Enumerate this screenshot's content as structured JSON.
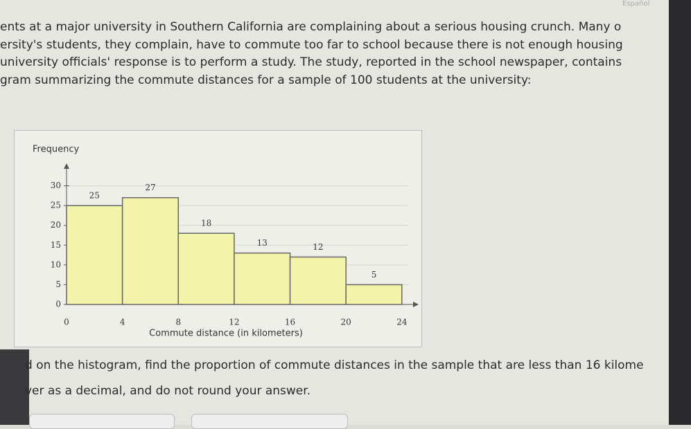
{
  "header": {
    "language": "Español"
  },
  "paragraph": [
    "ents at a major university in Southern California are complaining about a serious housing crunch. Many o",
    "ersity's students, they complain, have to commute too far to school because there is not enough housing",
    "university officials' response is to perform a study. The study, reported in the school newspaper, contains",
    "gram summarizing the commute distances for a sample of 100 students at the university:"
  ],
  "question": [
    "d on the histogram, find the proportion of commute distances in the sample that are less than 16 kilome",
    "ver as a decimal, and do not round your answer."
  ],
  "chart_data": {
    "type": "histogram",
    "y_label": "Frequency",
    "x_label": "Commute distance (in kilometers)",
    "bins": [
      0,
      4,
      8,
      12,
      16,
      20,
      24
    ],
    "values": [
      25,
      27,
      18,
      13,
      12,
      5
    ],
    "color": "#f3f3a9",
    "xlim": [
      0,
      25
    ],
    "ylim": [
      0,
      35
    ],
    "xticks": [
      0,
      4,
      8,
      12,
      16,
      20,
      24
    ],
    "yticks": [
      0,
      5,
      10,
      15,
      20,
      25,
      30
    ],
    "grid": true
  }
}
